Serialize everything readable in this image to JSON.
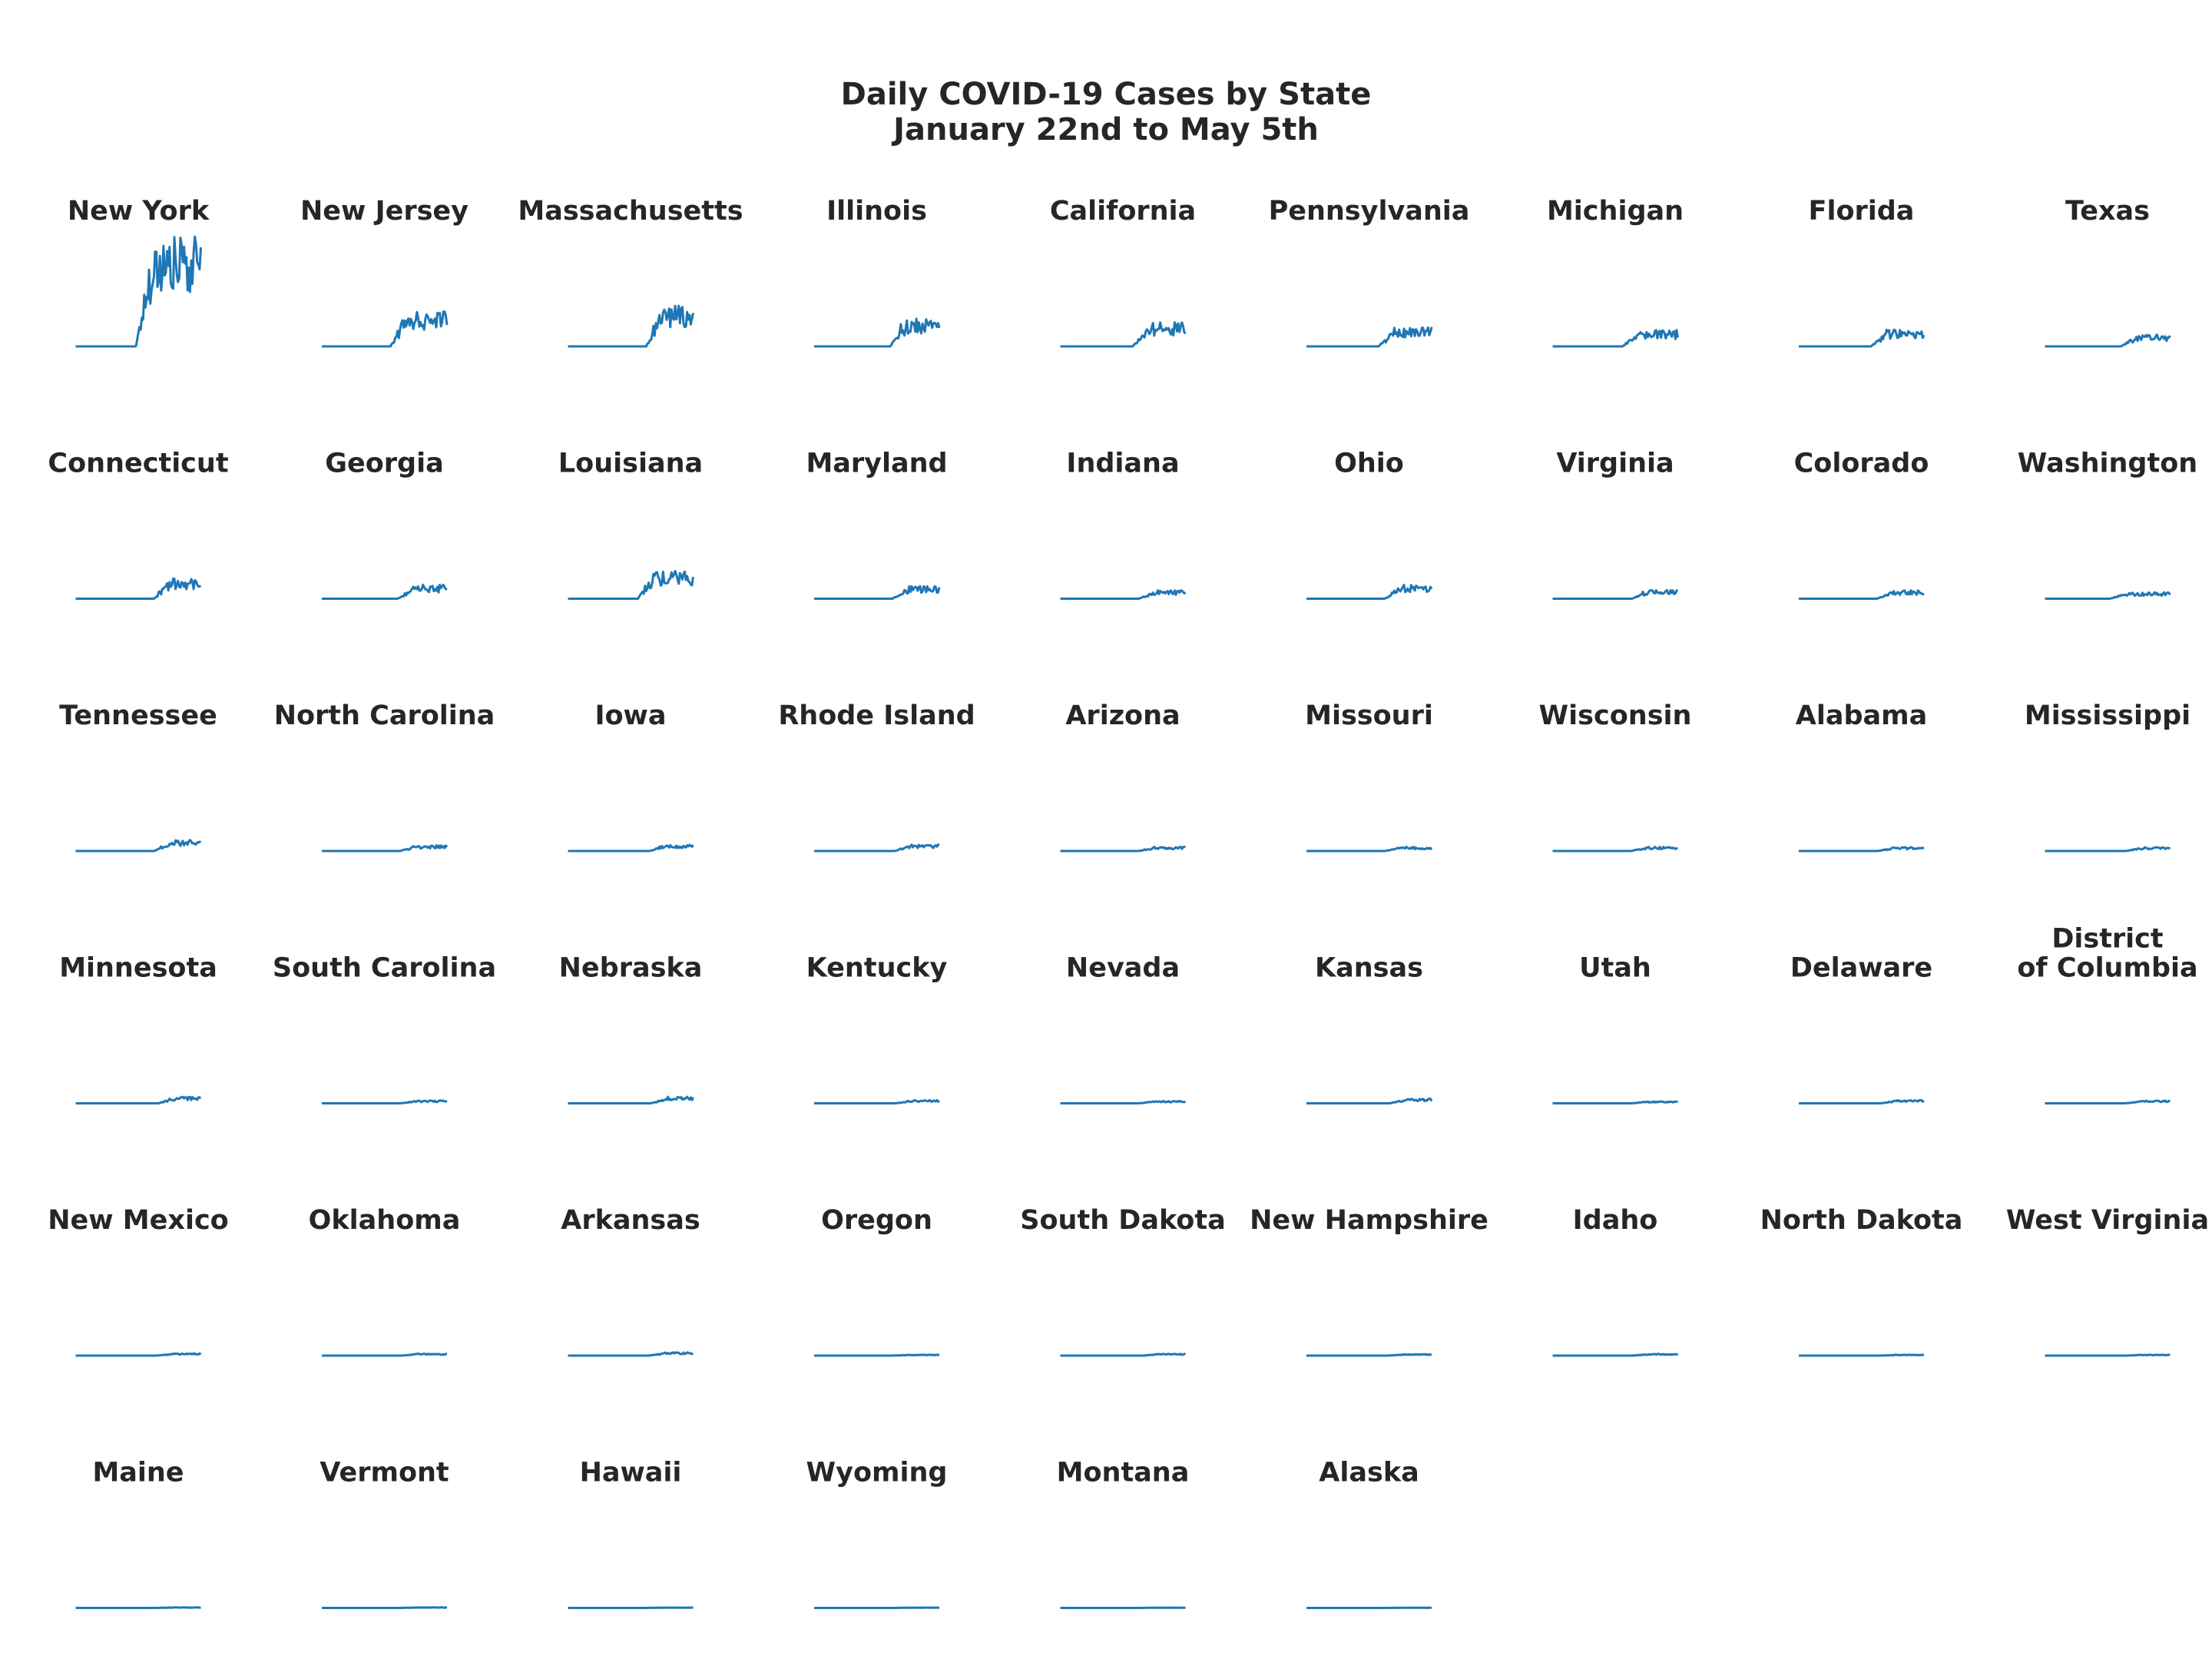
{
  "title_line1": "Daily COVID-19 Cases by State",
  "title_line2": "January 22nd to May 5th",
  "chart_data": {
    "type": "line",
    "title": "Daily COVID-19 Cases by State\nJanuary 22nd to May 5th",
    "x_start": "2020-01-22",
    "x_end": "2020-05-05",
    "xlabel": "",
    "ylabel": "",
    "ylim": [
      0,
      12500
    ],
    "grid": false,
    "line_color": "#1f77b4",
    "panels": [
      {
        "name": "New York",
        "peak": 12000,
        "onset": 0.48
      },
      {
        "name": "New Jersey",
        "peak": 4000,
        "onset": 0.55
      },
      {
        "name": "Massachusetts",
        "peak": 4500,
        "onset": 0.62
      },
      {
        "name": "Illinois",
        "peak": 3000,
        "onset": 0.6
      },
      {
        "name": "California",
        "peak": 2600,
        "onset": 0.58
      },
      {
        "name": "Pennsylvania",
        "peak": 2100,
        "onset": 0.58
      },
      {
        "name": "Michigan",
        "peak": 1800,
        "onset": 0.56
      },
      {
        "name": "Florida",
        "peak": 1800,
        "onset": 0.58
      },
      {
        "name": "Texas",
        "peak": 1300,
        "onset": 0.6
      },
      {
        "name": "Connecticut",
        "peak": 2200,
        "onset": 0.62
      },
      {
        "name": "Georgia",
        "peak": 1500,
        "onset": 0.6
      },
      {
        "name": "Louisiana",
        "peak": 3000,
        "onset": 0.56
      },
      {
        "name": "Maryland",
        "peak": 1400,
        "onset": 0.62
      },
      {
        "name": "Indiana",
        "peak": 900,
        "onset": 0.62
      },
      {
        "name": "Ohio",
        "peak": 1600,
        "onset": 0.62
      },
      {
        "name": "Virginia",
        "peak": 1000,
        "onset": 0.63
      },
      {
        "name": "Colorado",
        "peak": 900,
        "onset": 0.62
      },
      {
        "name": "Washington",
        "peak": 700,
        "onset": 0.52
      },
      {
        "name": "Tennessee",
        "peak": 1200,
        "onset": 0.62
      },
      {
        "name": "North Carolina",
        "peak": 600,
        "onset": 0.62
      },
      {
        "name": "Iowa",
        "peak": 700,
        "onset": 0.65
      },
      {
        "name": "Rhode Island",
        "peak": 700,
        "onset": 0.64
      },
      {
        "name": "Arizona",
        "peak": 450,
        "onset": 0.62
      },
      {
        "name": "Missouri",
        "peak": 450,
        "onset": 0.62
      },
      {
        "name": "Wisconsin",
        "peak": 450,
        "onset": 0.62
      },
      {
        "name": "Alabama",
        "peak": 400,
        "onset": 0.62
      },
      {
        "name": "Mississippi",
        "peak": 400,
        "onset": 0.64
      },
      {
        "name": "Minnesota",
        "peak": 700,
        "onset": 0.66
      },
      {
        "name": "South Carolina",
        "peak": 300,
        "onset": 0.62
      },
      {
        "name": "Nebraska",
        "peak": 700,
        "onset": 0.66
      },
      {
        "name": "Kentucky",
        "peak": 350,
        "onset": 0.64
      },
      {
        "name": "Nevada",
        "peak": 250,
        "onset": 0.62
      },
      {
        "name": "Kansas",
        "peak": 500,
        "onset": 0.66
      },
      {
        "name": "Utah",
        "peak": 200,
        "onset": 0.62
      },
      {
        "name": "Delaware",
        "peak": 350,
        "onset": 0.65
      },
      {
        "name": "District of Columbia",
        "peak": 300,
        "onset": 0.64
      },
      {
        "name": "New Mexico",
        "peak": 250,
        "onset": 0.64
      },
      {
        "name": "Oklahoma",
        "peak": 200,
        "onset": 0.63
      },
      {
        "name": "Arkansas",
        "peak": 350,
        "onset": 0.64
      },
      {
        "name": "Oregon",
        "peak": 100,
        "onset": 0.62
      },
      {
        "name": "South Dakota",
        "peak": 200,
        "onset": 0.66
      },
      {
        "name": "New Hampshire",
        "peak": 150,
        "onset": 0.64
      },
      {
        "name": "Idaho",
        "peak": 180,
        "onset": 0.63
      },
      {
        "name": "North Dakota",
        "peak": 100,
        "onset": 0.65
      },
      {
        "name": "West Virginia",
        "peak": 100,
        "onset": 0.65
      },
      {
        "name": "Maine",
        "peak": 60,
        "onset": 0.64
      },
      {
        "name": "Vermont",
        "peak": 60,
        "onset": 0.62
      },
      {
        "name": "Hawaii",
        "peak": 40,
        "onset": 0.62
      },
      {
        "name": "Wyoming",
        "peak": 40,
        "onset": 0.64
      },
      {
        "name": "Montana",
        "peak": 30,
        "onset": 0.63
      },
      {
        "name": "Alaska",
        "peak": 20,
        "onset": 0.64
      }
    ]
  }
}
